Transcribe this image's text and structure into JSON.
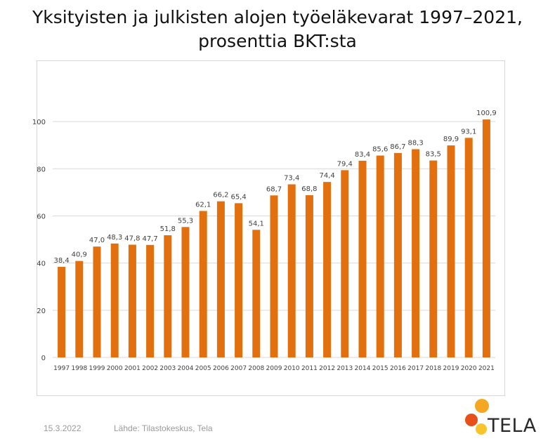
{
  "title": {
    "line1": "Yksityisten ja julkisten alojen työeläkevarat 1997–2021,",
    "line2": "prosenttia BKT:sta"
  },
  "footer": {
    "date": "15.3.2022",
    "source": "Lähde: Tilastokeskus, Tela"
  },
  "logo": {
    "text": "TELA",
    "colors": [
      "#f5a623",
      "#e8501a",
      "#f7c52b"
    ]
  },
  "colors": {
    "bar": "#e2700e",
    "grid": "#d9d9d9",
    "text": "#404040"
  },
  "chart_data": {
    "type": "bar",
    "categories": [
      "1997",
      "1998",
      "1999",
      "2000",
      "2001",
      "2002",
      "2003",
      "2004",
      "2005",
      "2006",
      "2007",
      "2008",
      "2009",
      "2010",
      "2011",
      "2012",
      "2013",
      "2014",
      "2015",
      "2016",
      "2017",
      "2018",
      "2019",
      "2020",
      "2021"
    ],
    "values": [
      38.4,
      40.9,
      47.0,
      48.3,
      47.8,
      47.7,
      51.8,
      55.3,
      62.1,
      66.2,
      65.4,
      54.1,
      68.7,
      73.4,
      68.8,
      74.4,
      79.4,
      83.4,
      85.6,
      86.7,
      88.3,
      83.5,
      89.9,
      93.1,
      100.9
    ],
    "value_labels": [
      "38,4",
      "40,9",
      "47,0",
      "48,3",
      "47,8",
      "47,7",
      "51,8",
      "55,3",
      "62,1",
      "66,2",
      "65,4",
      "54,1",
      "68,7",
      "73,4",
      "68,8",
      "74,4",
      "79,4",
      "83,4",
      "85,6",
      "86,7",
      "88,3",
      "83,5",
      "89,9",
      "93,1",
      "100,9"
    ],
    "yticks": [
      0,
      20,
      40,
      60,
      80,
      100
    ],
    "ylim": [
      0,
      120
    ],
    "grid": true,
    "legend": "none"
  }
}
